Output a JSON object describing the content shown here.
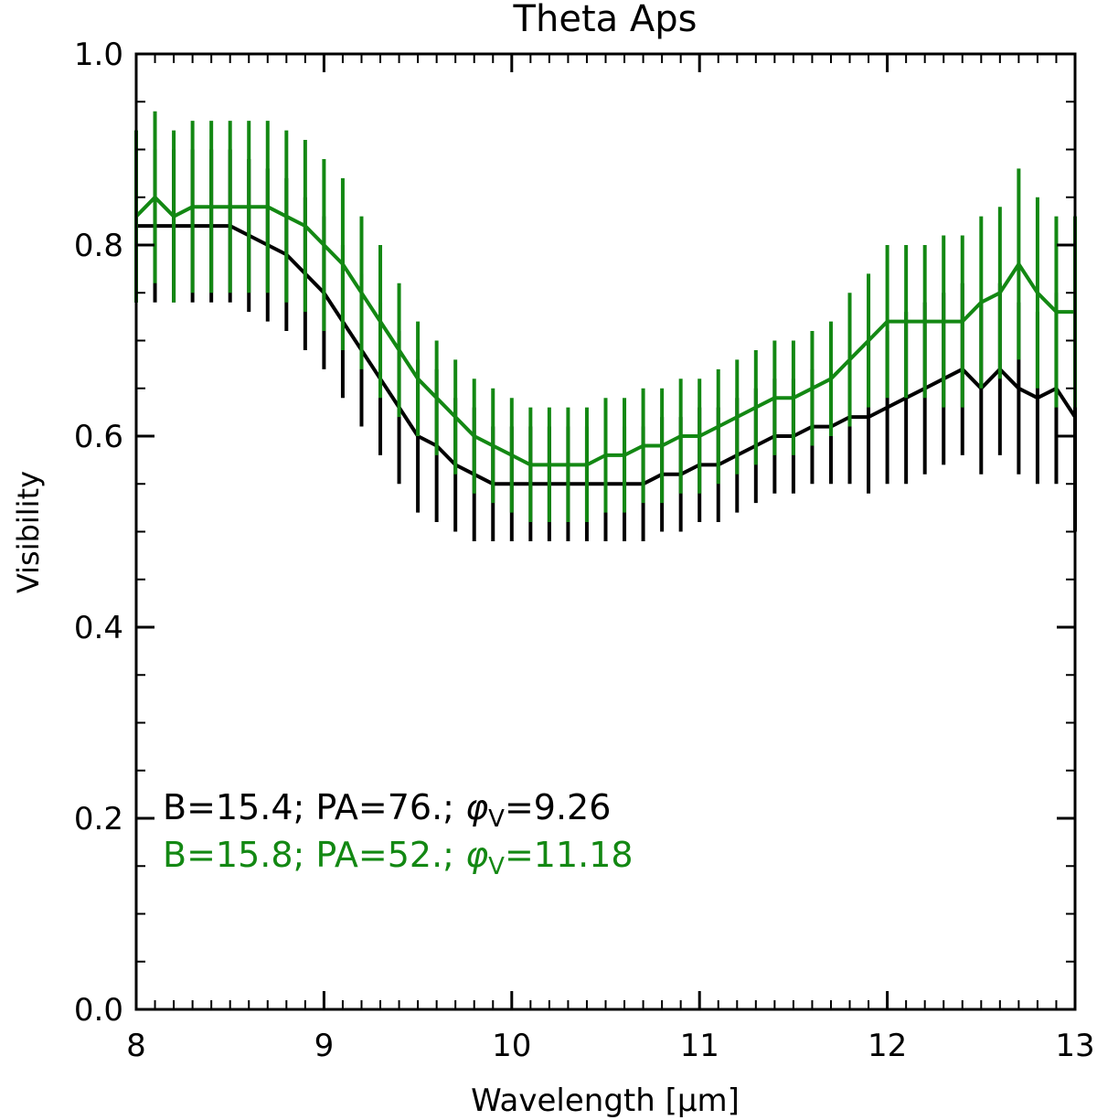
{
  "chart_data": {
    "type": "line",
    "title": "Theta Aps",
    "xlabel": "Wavelength [μm]",
    "ylabel": "Visibility",
    "xlim": [
      8,
      13
    ],
    "ylim": [
      0.0,
      1.0
    ],
    "x_ticks": [
      8,
      9,
      10,
      11,
      12,
      13
    ],
    "x_tick_labels": [
      "8",
      "9",
      "10",
      "11",
      "12",
      "13"
    ],
    "y_ticks": [
      0.0,
      0.2,
      0.4,
      0.6,
      0.8,
      1.0
    ],
    "y_tick_labels": [
      "0.0",
      "0.2",
      "0.4",
      "0.6",
      "0.8",
      "1.0"
    ],
    "x": [
      8.0,
      8.1,
      8.2,
      8.3,
      8.4,
      8.5,
      8.6,
      8.7,
      8.8,
      8.9,
      9.0,
      9.1,
      9.2,
      9.3,
      9.4,
      9.5,
      9.6,
      9.7,
      9.8,
      9.9,
      10.0,
      10.1,
      10.2,
      10.3,
      10.4,
      10.5,
      10.6,
      10.7,
      10.8,
      10.9,
      11.0,
      11.1,
      11.2,
      11.3,
      11.4,
      11.5,
      11.6,
      11.7,
      11.8,
      11.9,
      12.0,
      12.1,
      12.2,
      12.3,
      12.4,
      12.5,
      12.6,
      12.7,
      12.8,
      12.9,
      13.0
    ],
    "series": [
      {
        "name": "B=15.4; PA=76.; φv=9.26",
        "color": "#000000",
        "values": [
          0.82,
          0.82,
          0.82,
          0.82,
          0.82,
          0.82,
          0.81,
          0.8,
          0.79,
          0.77,
          0.75,
          0.72,
          0.69,
          0.66,
          0.63,
          0.6,
          0.59,
          0.57,
          0.56,
          0.55,
          0.55,
          0.55,
          0.55,
          0.55,
          0.55,
          0.55,
          0.55,
          0.55,
          0.56,
          0.56,
          0.57,
          0.57,
          0.58,
          0.59,
          0.6,
          0.6,
          0.61,
          0.61,
          0.62,
          0.62,
          0.63,
          0.64,
          0.65,
          0.66,
          0.67,
          0.65,
          0.67,
          0.65,
          0.64,
          0.65,
          0.62
        ],
        "errors": [
          0.08,
          0.08,
          0.08,
          0.08,
          0.08,
          0.08,
          0.08,
          0.08,
          0.08,
          0.08,
          0.08,
          0.08,
          0.08,
          0.08,
          0.08,
          0.08,
          0.08,
          0.07,
          0.07,
          0.06,
          0.06,
          0.06,
          0.06,
          0.06,
          0.06,
          0.06,
          0.06,
          0.06,
          0.06,
          0.06,
          0.06,
          0.06,
          0.06,
          0.06,
          0.06,
          0.06,
          0.06,
          0.06,
          0.07,
          0.08,
          0.08,
          0.09,
          0.09,
          0.09,
          0.09,
          0.09,
          0.09,
          0.09,
          0.09,
          0.1,
          0.12
        ]
      },
      {
        "name": "B=15.8; PA=52.; φv=11.18",
        "color": "#138813",
        "values": [
          0.83,
          0.85,
          0.83,
          0.84,
          0.84,
          0.84,
          0.84,
          0.84,
          0.83,
          0.82,
          0.8,
          0.78,
          0.75,
          0.72,
          0.69,
          0.66,
          0.64,
          0.62,
          0.6,
          0.59,
          0.58,
          0.57,
          0.57,
          0.57,
          0.57,
          0.58,
          0.58,
          0.59,
          0.59,
          0.6,
          0.6,
          0.61,
          0.62,
          0.63,
          0.64,
          0.64,
          0.65,
          0.66,
          0.68,
          0.7,
          0.72,
          0.72,
          0.72,
          0.72,
          0.72,
          0.74,
          0.75,
          0.78,
          0.75,
          0.73,
          0.73
        ],
        "errors": [
          0.09,
          0.09,
          0.09,
          0.09,
          0.09,
          0.09,
          0.09,
          0.09,
          0.09,
          0.09,
          0.09,
          0.09,
          0.08,
          0.08,
          0.07,
          0.06,
          0.06,
          0.06,
          0.06,
          0.06,
          0.06,
          0.06,
          0.06,
          0.06,
          0.06,
          0.06,
          0.06,
          0.06,
          0.06,
          0.06,
          0.06,
          0.06,
          0.06,
          0.06,
          0.06,
          0.06,
          0.06,
          0.06,
          0.07,
          0.07,
          0.08,
          0.08,
          0.08,
          0.09,
          0.09,
          0.09,
          0.09,
          0.1,
          0.1,
          0.1,
          0.1
        ]
      }
    ],
    "legend": [
      {
        "b": "B=15.4;",
        "pa": "PA=76.;",
        "phi": "φ",
        "sub": "V",
        "val": "=9.26",
        "color": "#000000"
      },
      {
        "b": "B=15.8;",
        "pa": "PA=52.;",
        "phi": "φ",
        "sub": "V",
        "val": "=11.18",
        "color": "#138813"
      }
    ],
    "legend_position": "bottom-left"
  }
}
